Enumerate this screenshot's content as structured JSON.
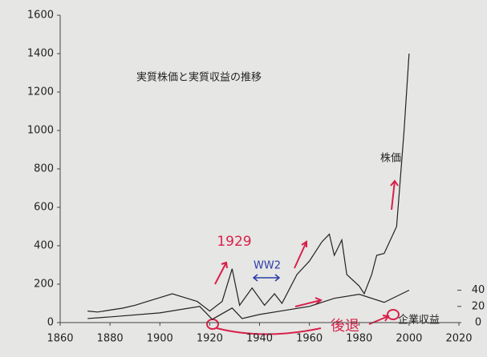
{
  "chart_data": {
    "type": "line",
    "title": "実質株価と実質収益の推移",
    "x": [
      1871,
      1875,
      1880,
      1885,
      1890,
      1895,
      1900,
      1905,
      1910,
      1915,
      1920,
      1925,
      1929,
      1932,
      1937,
      1942,
      1946,
      1949,
      1955,
      1960,
      1965,
      1968,
      1970,
      1973,
      1975,
      1980,
      1982,
      1985,
      1987,
      1990,
      1995,
      1998,
      2000
    ],
    "series": [
      {
        "name": "株価",
        "color": "#222222",
        "x": [
          1871,
          1875,
          1880,
          1885,
          1890,
          1895,
          1900,
          1905,
          1910,
          1915,
          1920,
          1925,
          1929,
          1932,
          1937,
          1942,
          1946,
          1949,
          1955,
          1960,
          1965,
          1968,
          1970,
          1973,
          1975,
          1980,
          1982,
          1985,
          1987,
          1990,
          1995,
          1998,
          2000
        ],
        "values": [
          60,
          55,
          65,
          75,
          90,
          110,
          130,
          150,
          130,
          110,
          60,
          110,
          280,
          90,
          180,
          90,
          150,
          100,
          250,
          320,
          420,
          460,
          350,
          430,
          250,
          190,
          150,
          250,
          350,
          360,
          500,
          1000,
          1400
        ]
      },
      {
        "name": "企業収益",
        "color": "#222222",
        "axis": "y2",
        "x": [
          1871,
          1880,
          1900,
          1916,
          1921,
          1929,
          1933,
          1940,
          1950,
          1960,
          1970,
          1980,
          1990,
          2000
        ],
        "values": [
          5,
          7,
          12,
          20,
          4,
          18,
          5,
          10,
          15,
          20,
          30,
          35,
          25,
          40
        ]
      }
    ],
    "annotations": [
      "1929",
      "WW2",
      "後退"
    ],
    "xlim": [
      1860,
      2020
    ],
    "xticks": [
      1860,
      1880,
      1900,
      1920,
      1940,
      1960,
      1980,
      2000,
      2020
    ],
    "ylim": [
      0,
      1600
    ],
    "yticks": [
      0,
      200,
      400,
      600,
      800,
      1000,
      1200,
      1400,
      1600
    ],
    "y2lim": [
      0,
      380
    ],
    "y2ticks": [
      0,
      20,
      40
    ]
  }
}
